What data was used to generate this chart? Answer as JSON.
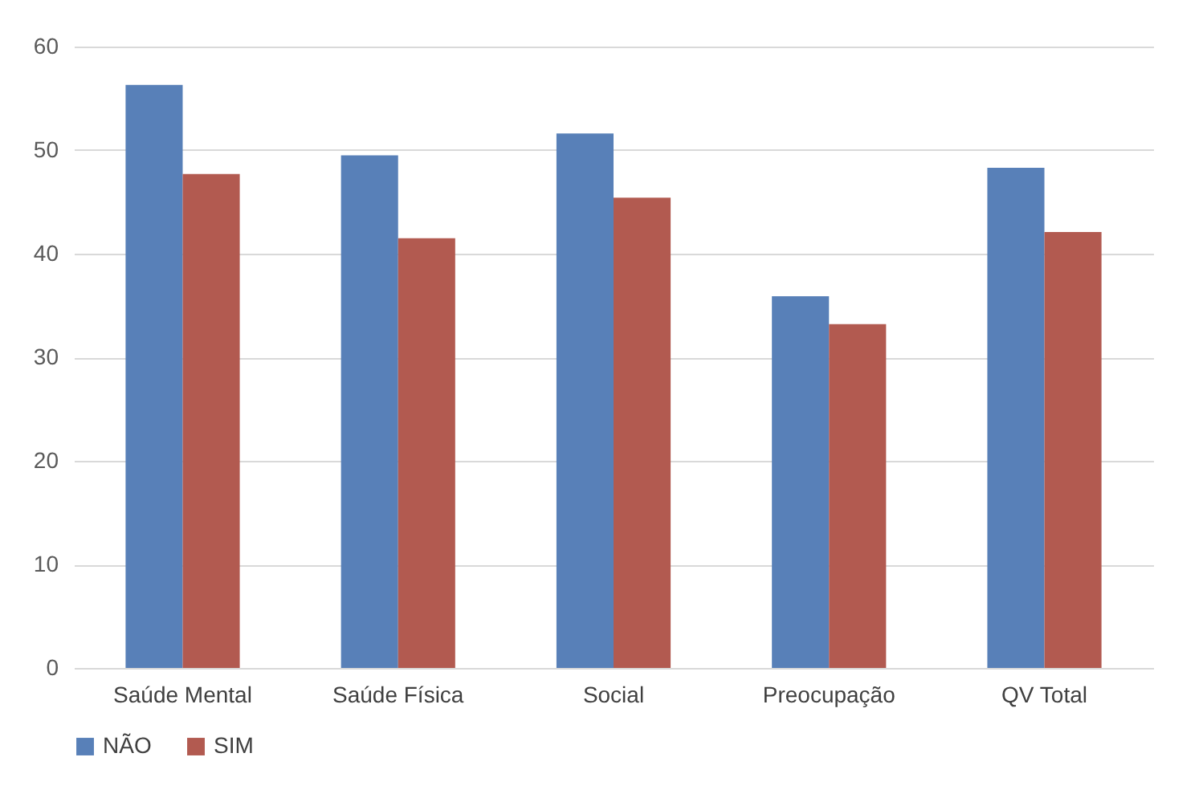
{
  "chart_data": {
    "type": "bar",
    "categories": [
      "Saúde Mental",
      "Saúde Física",
      "Social",
      "Preocupação",
      "QV Total"
    ],
    "series": [
      {
        "name": "NÃO",
        "color": "#5880b8",
        "values": [
          56.3,
          49.5,
          51.6,
          35.9,
          48.3
        ]
      },
      {
        "name": "SIM",
        "color": "#b25a50",
        "values": [
          47.7,
          41.5,
          45.4,
          33.2,
          42.1
        ]
      }
    ],
    "ylim": [
      0,
      60
    ],
    "yticks": [
      0,
      10,
      20,
      30,
      40,
      50,
      60
    ],
    "grid": "y",
    "legend": "bottom"
  }
}
